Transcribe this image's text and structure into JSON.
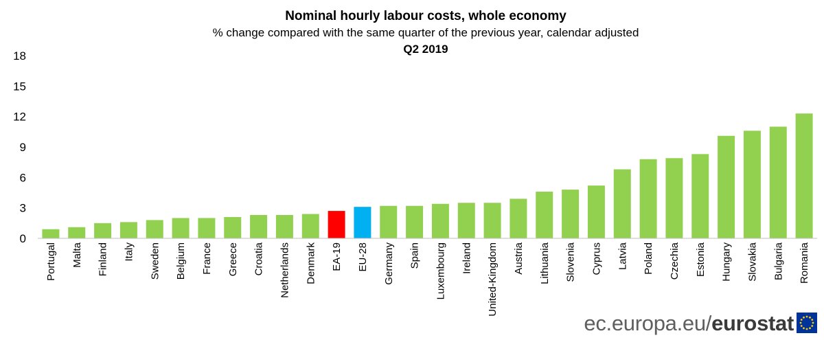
{
  "chart_data": {
    "type": "bar",
    "title": "Nominal hourly labour costs, whole economy",
    "subtitle": "% change compared with the same quarter of the previous year, calendar adjusted",
    "period": "Q2 2019",
    "categories": [
      "Portugal",
      "Malta",
      "Finland",
      "Italy",
      "Sweden",
      "Belgium",
      "France",
      "Greece",
      "Croatia",
      "Netherlands",
      "Denmark",
      "EA-19",
      "EU-28",
      "Germany",
      "Spain",
      "Luxembourg",
      "Ireland",
      "United-Kingdom",
      "Austria",
      "Lithuania",
      "Slovenia",
      "Cyprus",
      "Latvia",
      "Poland",
      "Czechia",
      "Estonia",
      "Hungary",
      "Slovakia",
      "Bulgaria",
      "Romania"
    ],
    "values": [
      0.9,
      1.1,
      1.5,
      1.6,
      1.8,
      2.0,
      2.0,
      2.1,
      2.3,
      2.3,
      2.4,
      2.7,
      3.1,
      3.2,
      3.2,
      3.4,
      3.5,
      3.5,
      3.9,
      4.6,
      4.8,
      5.2,
      6.8,
      7.8,
      7.9,
      8.3,
      10.1,
      10.6,
      11.0,
      12.3
    ],
    "highlight": {
      "EA-19": "#ff0000",
      "EU-28": "#00b0f0"
    },
    "bar_color": "#92d050",
    "ylim": [
      0,
      18
    ],
    "yticks": [
      0,
      3,
      6,
      9,
      12,
      15,
      18
    ],
    "grid": false,
    "xlabel": "",
    "ylabel": ""
  },
  "branding": {
    "site": "ec.europa.eu/",
    "name": "eurostat"
  },
  "icons": {
    "flag": "eu-flag-icon"
  }
}
